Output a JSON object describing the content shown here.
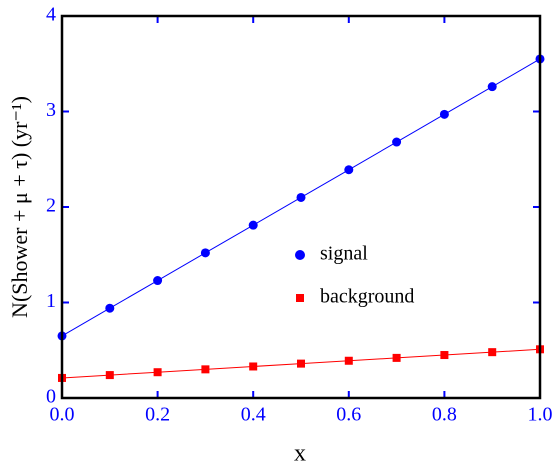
{
  "chart_data": {
    "type": "scatter",
    "xlabel": "x",
    "ylabel": "N(Shower + μ + τ)  (yr⁻¹)",
    "x": [
      0.0,
      0.1,
      0.2,
      0.3,
      0.4,
      0.5,
      0.6,
      0.7,
      0.8,
      0.9,
      1.0
    ],
    "series": [
      {
        "name": "signal",
        "color": "#0000ff",
        "marker": "circle",
        "values": [
          0.65,
          0.94,
          1.23,
          1.52,
          1.81,
          2.1,
          2.39,
          2.68,
          2.97,
          3.26,
          3.55
        ]
      },
      {
        "name": "background",
        "color": "#ff0000",
        "marker": "square",
        "values": [
          0.21,
          0.24,
          0.27,
          0.3,
          0.33,
          0.36,
          0.39,
          0.42,
          0.45,
          0.48,
          0.51
        ]
      }
    ],
    "xlim": [
      0,
      1
    ],
    "ylim": [
      0,
      4
    ],
    "xticks": [
      {
        "value": 0,
        "label": "0.0"
      },
      0.2,
      0.4,
      0.6,
      0.8,
      {
        "value": 1,
        "label": "1.0"
      }
    ],
    "yticks": [
      0,
      1,
      2,
      3,
      4
    ]
  }
}
